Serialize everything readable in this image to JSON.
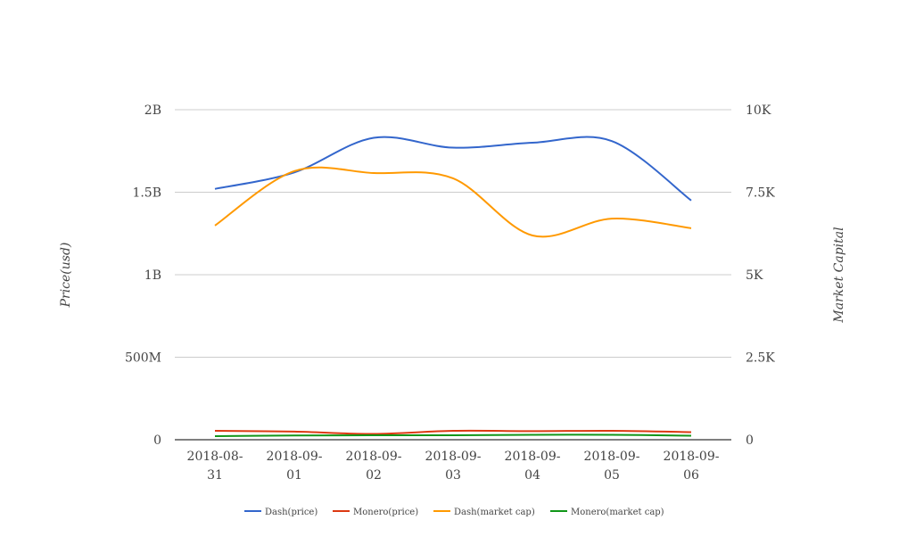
{
  "chart_data": {
    "type": "line",
    "title": "",
    "x": [
      "2018-08-31",
      "2018-09-01",
      "2018-09-02",
      "2018-09-03",
      "2018-09-04",
      "2018-09-05",
      "2018-09-06"
    ],
    "x_tick_lines": [
      [
        "2018-08-",
        "31"
      ],
      [
        "2018-09-",
        "01"
      ],
      [
        "2018-09-",
        "02"
      ],
      [
        "2018-09-",
        "03"
      ],
      [
        "2018-09-",
        "04"
      ],
      [
        "2018-09-",
        "05"
      ],
      [
        "2018-09-",
        "06"
      ]
    ],
    "ylabel": "Price(usd)",
    "y2label": "Market Capital",
    "ylim": [
      0,
      2000000000
    ],
    "y2lim": [
      0,
      10000
    ],
    "yticks": [
      {
        "v": 0,
        "label": "0"
      },
      {
        "v": 500000000,
        "label": "500M"
      },
      {
        "v": 1000000000,
        "label": "1B"
      },
      {
        "v": 1500000000,
        "label": "1.5B"
      },
      {
        "v": 2000000000,
        "label": "2B"
      }
    ],
    "y2ticks": [
      {
        "v": 0,
        "label": "0"
      },
      {
        "v": 2500,
        "label": "2.5K"
      },
      {
        "v": 5000,
        "label": "5K"
      },
      {
        "v": 7500,
        "label": "7.5K"
      },
      {
        "v": 10000,
        "label": "10K"
      }
    ],
    "grid": true,
    "legend": "bottom",
    "series": [
      {
        "name": "Dash(price)",
        "axis": "left",
        "color": "#3366cc",
        "values": [
          1520000000,
          1620000000,
          1830000000,
          1770000000,
          1800000000,
          1810000000,
          1450000000
        ]
      },
      {
        "name": "Monero(price)",
        "axis": "left",
        "color": "#dc3912",
        "values": [
          54000000,
          49000000,
          35000000,
          54000000,
          52000000,
          54000000,
          46000000
        ]
      },
      {
        "name": "Dash(market cap)",
        "axis": "right",
        "color": "#ff9900",
        "values": [
          6490,
          8140,
          8080,
          7920,
          6190,
          6700,
          6410
        ]
      },
      {
        "name": "Monero(market cap)",
        "axis": "right",
        "color": "#109618",
        "values": [
          108,
          130,
          135,
          135,
          150,
          150,
          120
        ]
      }
    ]
  }
}
